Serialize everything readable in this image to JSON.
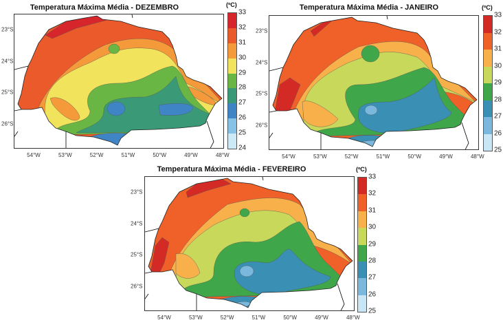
{
  "unit": "(ºC)",
  "lon_labels": [
    "54°W",
    "53°W",
    "52°W",
    "51°W",
    "50°W",
    "49°W",
    "48°W"
  ],
  "lat_labels": [
    "23°S",
    "24°S",
    "25°S",
    "26°S"
  ],
  "maps": [
    {
      "title": "Temperatura Máxima Média - DEZEMBRO",
      "ticks": [
        "33",
        "32",
        "31",
        "30",
        "29",
        "28",
        "27",
        "26",
        "25",
        "24"
      ],
      "colors": [
        "#d6262b",
        "#ea5a2a",
        "#f59a3b",
        "#f1e35b",
        "#6ab644",
        "#3a9a77",
        "#3f85c6",
        "#86c1e6",
        "#cde9f6"
      ]
    },
    {
      "title": "Temperatura Máxima Média - JANEIRO",
      "ticks": [
        "33",
        "32",
        "31",
        "30",
        "29",
        "28",
        "27",
        "26",
        "25"
      ],
      "colors": [
        "#d42a26",
        "#ef6128",
        "#f7b04a",
        "#c8d85a",
        "#3fa64a",
        "#3a8fb5",
        "#7ab8de",
        "#c8e6f6"
      ]
    },
    {
      "title": "Temperatura Máxima Média - FEVEREIRO",
      "ticks": [
        "33",
        "32",
        "31",
        "30",
        "29",
        "28",
        "27",
        "26",
        "25"
      ],
      "colors": [
        "#d42a26",
        "#ef6128",
        "#f7b04a",
        "#c8d85a",
        "#3fa64a",
        "#3a8fb5",
        "#7ab8de",
        "#c8e6f6"
      ]
    }
  ]
}
